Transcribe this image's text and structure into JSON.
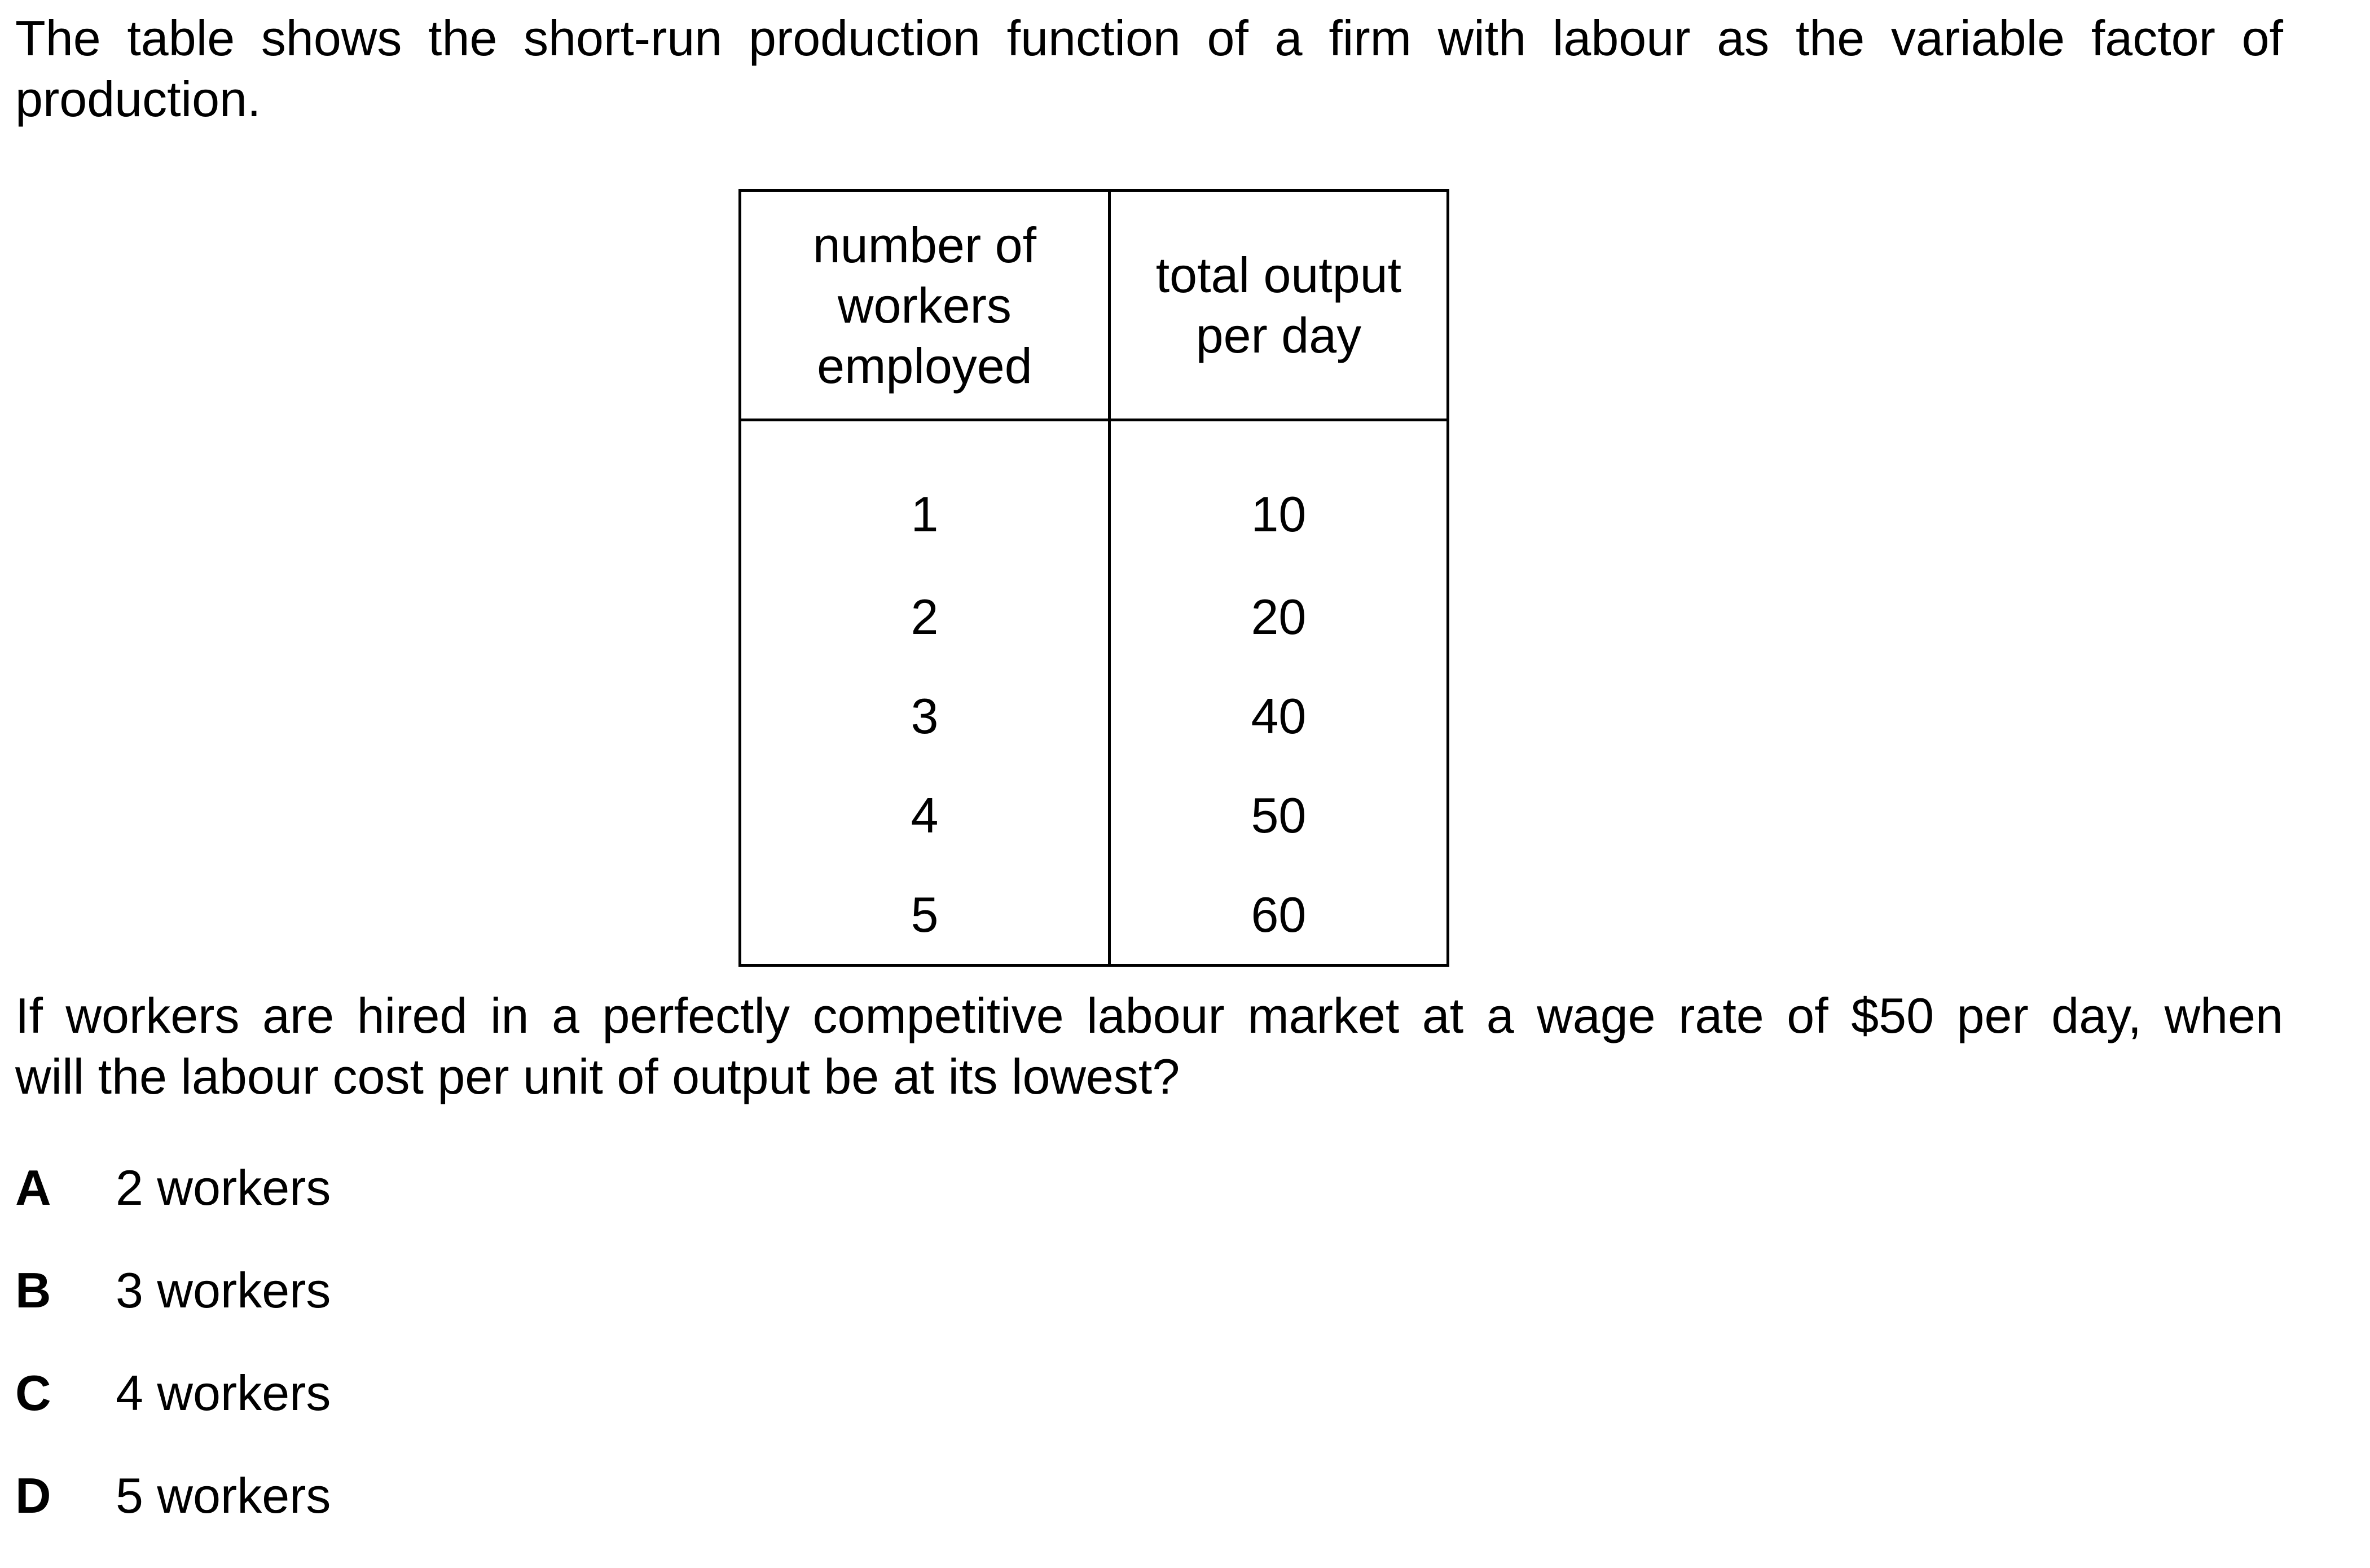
{
  "intro": {
    "line1": "The table shows the short-run production function of a firm with labour as the variable factor of",
    "line2": "production."
  },
  "table": {
    "headers": [
      "number of workers employed",
      "total output per day"
    ],
    "header_lines": [
      [
        "number of",
        "workers",
        "employed"
      ],
      [
        "total output",
        "per day"
      ]
    ],
    "rows": [
      [
        "1",
        "10"
      ],
      [
        "2",
        "20"
      ],
      [
        "3",
        "40"
      ],
      [
        "4",
        "50"
      ],
      [
        "5",
        "60"
      ]
    ]
  },
  "question": {
    "line1": "If workers are hired in a perfectly competitive labour market at a wage rate of $50 per day, when",
    "line2": "will the labour cost per unit of output be at its lowest?"
  },
  "options": [
    {
      "letter": "A",
      "text": "2 workers"
    },
    {
      "letter": "B",
      "text": "3 workers"
    },
    {
      "letter": "C",
      "text": "4 workers"
    },
    {
      "letter": "D",
      "text": "5 workers"
    }
  ]
}
